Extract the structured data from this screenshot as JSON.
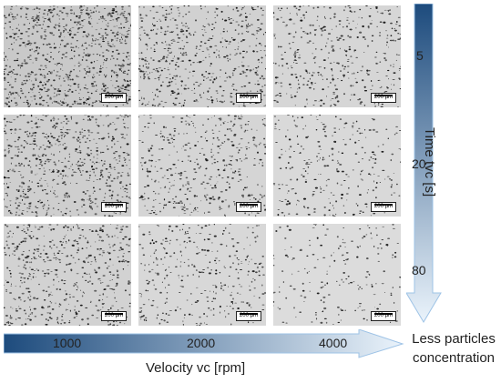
{
  "image_grid": {
    "columns_label": [
      "1000",
      "2000",
      "4000"
    ],
    "rows_label": [
      "5",
      "20",
      "80"
    ],
    "scale_bar": "200 µm",
    "density": [
      [
        0.95,
        0.65,
        0.45
      ],
      [
        0.75,
        0.5,
        0.32
      ],
      [
        0.6,
        0.38,
        0.22
      ]
    ]
  },
  "velocity_axis": {
    "title": "Velocity vc [rpm]",
    "color_start": "#1d4b7d",
    "color_end": "#eaf3fb"
  },
  "time_axis": {
    "title": "Time tvc [s]",
    "color_start": "#1d4b7d",
    "color_end": "#eaf3fb"
  },
  "annotation": {
    "line1": "Less particles",
    "line2": "concentration"
  }
}
